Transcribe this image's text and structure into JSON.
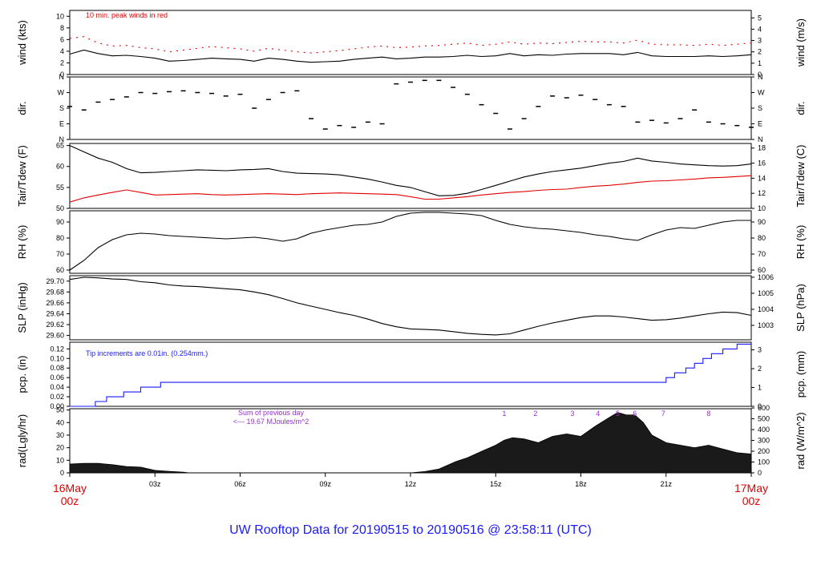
{
  "title": "UW Rooftop Data for 20190515  to  20190516 @ 23:58:11  (UTC)",
  "x_axis": {
    "start_label": [
      "16May",
      "00z"
    ],
    "end_label": [
      "17May",
      "00z"
    ],
    "ticks": [
      "03z",
      "06z",
      "09z",
      "12z",
      "15z",
      "18z",
      "21z"
    ],
    "range_hours": [
      0,
      24
    ],
    "tick_hours": [
      3,
      6,
      9,
      12,
      15,
      18,
      21
    ]
  },
  "colors": {
    "title": "#1a1aff",
    "date_labels": "#e00000",
    "peak": "#e00000",
    "dew": "#e00000",
    "precip": "#1a1aff",
    "annotation": "#9a2fd0",
    "line": "#000000"
  },
  "chart_data": [
    {
      "type": "line",
      "panel": "wind",
      "ylabel_left": "wind (kts)",
      "ylabel_right": "wind (m/s)",
      "left_ticks": [
        "0",
        "2",
        "4",
        "6",
        "8",
        "10"
      ],
      "right_ticks": [
        "0",
        "1",
        "2",
        "3",
        "4",
        "5"
      ],
      "ylim": [
        0,
        11
      ],
      "annotation": "10 min. peak winds in red",
      "series": [
        {
          "name": "wind",
          "x": [
            0,
            0.5,
            1,
            1.5,
            2,
            2.5,
            3,
            3.5,
            4,
            4.5,
            5,
            5.5,
            6,
            6.5,
            7,
            7.5,
            8,
            8.5,
            9,
            9.5,
            10,
            10.5,
            11,
            11.5,
            12,
            12.5,
            13,
            13.5,
            14,
            14.5,
            15,
            15.5,
            16,
            16.5,
            17,
            17.5,
            18,
            18.5,
            19,
            19.5,
            20,
            20.5,
            21,
            21.5,
            22,
            22.5,
            23,
            23.5,
            24
          ],
          "y": [
            3.5,
            4.2,
            3.6,
            3.2,
            3.3,
            3.1,
            2.8,
            2.3,
            2.4,
            2.6,
            2.8,
            2.7,
            2.6,
            2.3,
            2.8,
            2.6,
            2.3,
            2.1,
            2.2,
            2.3,
            2.6,
            2.8,
            3,
            2.7,
            2.8,
            3,
            3,
            3.1,
            3.3,
            3.1,
            3.2,
            3.6,
            3.2,
            3.4,
            3.3,
            3.5,
            3.6,
            3.6,
            3.6,
            3.4,
            3.8,
            3.2,
            3.1,
            3.1,
            3.1,
            3.2,
            3.1,
            3.2,
            3.4
          ]
        },
        {
          "name": "peak",
          "x": [
            0,
            0.5,
            1,
            1.5,
            2,
            2.5,
            3,
            3.5,
            4,
            4.5,
            5,
            5.5,
            6,
            6.5,
            7,
            7.5,
            8,
            8.5,
            9,
            9.5,
            10,
            10.5,
            11,
            11.5,
            12,
            12.5,
            13,
            13.5,
            14,
            14.5,
            15,
            15.5,
            16,
            16.5,
            17,
            17.5,
            18,
            18.5,
            19,
            19.5,
            20,
            20.5,
            21,
            21.5,
            22,
            22.5,
            23,
            23.5,
            24
          ],
          "y": [
            6.2,
            6.5,
            5.4,
            4.9,
            5,
            4.6,
            4.4,
            3.9,
            4.2,
            4.5,
            4.8,
            4.6,
            4.4,
            4,
            4.5,
            4.2,
            3.9,
            3.7,
            3.9,
            4.1,
            4.4,
            4.7,
            4.9,
            4.6,
            4.7,
            4.9,
            5,
            5.2,
            5.4,
            5,
            5.2,
            5.6,
            5.2,
            5.4,
            5.3,
            5.5,
            5.7,
            5.6,
            5.6,
            5.4,
            5.9,
            5.2,
            5.1,
            5.1,
            5,
            5.2,
            5,
            5.2,
            5.4
          ]
        }
      ]
    },
    {
      "type": "scatter",
      "panel": "dir",
      "ylabel_left": "dir.",
      "ylabel_right": "dir.",
      "left_ticks": [
        "N",
        "E",
        "S",
        "W",
        "N"
      ],
      "right_ticks": [
        "N",
        "E",
        "S",
        "W",
        "N"
      ],
      "ylim": [
        0,
        360
      ],
      "series": [
        {
          "name": "dir",
          "x": [
            0,
            0.5,
            1,
            1.5,
            2,
            2.5,
            3,
            3.5,
            4,
            4.5,
            5,
            5.5,
            6,
            6.5,
            7,
            7.5,
            8,
            8.5,
            9,
            9.5,
            10,
            10.5,
            11,
            11.5,
            12,
            12.5,
            13,
            13.5,
            14,
            14.5,
            15,
            15.5,
            16,
            16.5,
            17,
            17.5,
            18,
            18.5,
            19,
            19.5,
            20,
            20.5,
            21,
            21.5,
            22,
            22.5,
            23,
            23.5,
            24
          ],
          "y": [
            190,
            170,
            215,
            230,
            245,
            270,
            265,
            275,
            280,
            270,
            265,
            250,
            260,
            180,
            230,
            270,
            280,
            120,
            60,
            80,
            70,
            100,
            90,
            320,
            330,
            340,
            340,
            300,
            260,
            200,
            150,
            60,
            120,
            190,
            250,
            240,
            255,
            230,
            200,
            190,
            100,
            110,
            95,
            120,
            170,
            100,
            90,
            80,
            70
          ]
        }
      ]
    },
    {
      "type": "line",
      "panel": "temperature",
      "ylabel_left": "Tair/Tdew (F)",
      "ylabel_right": "Tair/Tdew (C)",
      "left_ticks": [
        "50",
        "55",
        "60",
        "65"
      ],
      "right_ticks": [
        "10",
        "12",
        "14",
        "16",
        "18"
      ],
      "ylim": [
        50,
        65.5
      ],
      "series": [
        {
          "name": "Tair",
          "x": [
            0,
            0.5,
            1,
            1.5,
            2,
            2.5,
            3,
            3.5,
            4,
            4.5,
            5,
            5.5,
            6,
            6.5,
            7,
            7.5,
            8,
            8.5,
            9,
            9.5,
            10,
            10.5,
            11,
            11.5,
            12,
            12.5,
            13,
            13.5,
            14,
            14.5,
            15,
            15.5,
            16,
            16.5,
            17,
            17.5,
            18,
            18.5,
            19,
            19.5,
            20,
            20.5,
            21,
            21.5,
            22,
            22.5,
            23,
            23.5,
            24
          ],
          "y": [
            65,
            63.5,
            62,
            61,
            59.5,
            58.5,
            58.6,
            58.8,
            59,
            59.2,
            59.1,
            59,
            59.2,
            59.3,
            59.5,
            58.8,
            58.4,
            58.3,
            58.2,
            58,
            57.5,
            57,
            56.3,
            55.5,
            55,
            54,
            53,
            53.1,
            53.6,
            54.5,
            55.5,
            56.5,
            57.5,
            58.2,
            58.8,
            59.2,
            59.6,
            60.2,
            60.8,
            61.2,
            62,
            61.3,
            61,
            60.6,
            60.4,
            60.2,
            60.1,
            60.2,
            60.6
          ]
        },
        {
          "name": "Tdew",
          "x": [
            0,
            0.5,
            1,
            1.5,
            2,
            2.5,
            3,
            3.5,
            4,
            4.5,
            5,
            5.5,
            6,
            6.5,
            7,
            7.5,
            8,
            8.5,
            9,
            9.5,
            10,
            10.5,
            11,
            11.5,
            12,
            12.5,
            13,
            13.5,
            14,
            14.5,
            15,
            15.5,
            16,
            16.5,
            17,
            17.5,
            18,
            18.5,
            19,
            19.5,
            20,
            20.5,
            21,
            21.5,
            22,
            22.5,
            23,
            23.5,
            24
          ],
          "y": [
            51.5,
            52.5,
            53.2,
            53.8,
            54.4,
            53.8,
            53.2,
            53.3,
            53.4,
            53.5,
            53.3,
            53.2,
            53.3,
            53.4,
            53.5,
            53.4,
            53.3,
            53.5,
            53.6,
            53.7,
            53.6,
            53.5,
            53.4,
            53.3,
            52.8,
            52.2,
            52.2,
            52.5,
            52.8,
            53.2,
            53.5,
            53.8,
            54,
            54.3,
            54.5,
            54.6,
            55,
            55.3,
            55.5,
            55.8,
            56.2,
            56.5,
            56.6,
            56.8,
            57,
            57.3,
            57.4,
            57.6,
            57.8
          ]
        }
      ]
    },
    {
      "type": "line",
      "panel": "rh",
      "ylabel_left": "RH (%)",
      "ylabel_right": "RH (%)",
      "left_ticks": [
        "60",
        "70",
        "80",
        "90"
      ],
      "right_ticks": [
        "60",
        "70",
        "80",
        "90"
      ],
      "ylim": [
        58,
        97
      ],
      "series": [
        {
          "name": "RH",
          "x": [
            0,
            0.5,
            1,
            1.5,
            2,
            2.5,
            3,
            3.5,
            4,
            4.5,
            5,
            5.5,
            6,
            6.5,
            7,
            7.5,
            8,
            8.5,
            9,
            9.5,
            10,
            10.5,
            11,
            11.5,
            12,
            12.5,
            13,
            13.5,
            14,
            14.5,
            15,
            15.5,
            16,
            16.5,
            17,
            17.5,
            18,
            18.5,
            19,
            19.5,
            20,
            20.5,
            21,
            21.5,
            22,
            22.5,
            23,
            23.5,
            24
          ],
          "y": [
            60,
            66,
            74,
            79,
            82,
            83,
            82.5,
            81.5,
            81,
            80.5,
            80,
            79.5,
            80,
            80.5,
            79.5,
            78,
            79.5,
            83,
            85,
            86.5,
            88,
            88.5,
            90,
            93.5,
            95.5,
            96,
            96,
            95.5,
            95,
            94,
            91,
            88.5,
            87,
            86,
            85.5,
            84.5,
            83.5,
            82,
            81,
            79.5,
            78.5,
            82,
            85,
            86.5,
            86,
            88,
            90,
            91,
            91
          ]
        }
      ]
    },
    {
      "type": "line",
      "panel": "slp",
      "ylabel_left": "SLP (inHg)",
      "ylabel_right": "SLP (hPa)",
      "left_ticks": [
        "29.60",
        "29.62",
        "29.64",
        "29.66",
        "29.68",
        "29.70"
      ],
      "right_ticks": [
        "1003",
        "1004",
        "1005",
        "1006"
      ],
      "ylim": [
        29.592,
        29.71
      ],
      "series": [
        {
          "name": "SLP",
          "x": [
            0,
            0.5,
            1,
            1.5,
            2,
            2.5,
            3,
            3.5,
            4,
            4.5,
            5,
            5.5,
            6,
            6.5,
            7,
            7.5,
            8,
            8.5,
            9,
            9.5,
            10,
            10.5,
            11,
            11.5,
            12,
            12.5,
            13,
            13.5,
            14,
            14.5,
            15,
            15.5,
            16,
            16.5,
            17,
            17.5,
            18,
            18.5,
            19,
            19.5,
            20,
            20.5,
            21,
            21.5,
            22,
            22.5,
            23,
            23.5,
            24
          ],
          "y": [
            29.703,
            29.707,
            29.706,
            29.704,
            29.703,
            29.699,
            29.697,
            29.693,
            29.691,
            29.69,
            29.688,
            29.686,
            29.684,
            29.68,
            29.675,
            29.668,
            29.66,
            29.654,
            29.648,
            29.642,
            29.637,
            29.63,
            29.622,
            29.616,
            29.612,
            29.611,
            29.61,
            29.607,
            29.604,
            29.602,
            29.601,
            29.603,
            29.61,
            29.617,
            29.623,
            29.628,
            29.633,
            29.636,
            29.636,
            29.634,
            29.631,
            29.628,
            29.629,
            29.632,
            29.636,
            29.64,
            29.643,
            29.642,
            29.637
          ]
        }
      ]
    },
    {
      "type": "line",
      "panel": "precip",
      "ylabel_left": "pcp. (in)",
      "ylabel_right": "pcp. (mm)",
      "left_ticks": [
        "0.00",
        "0.02",
        "0.04",
        "0.06",
        "0.08",
        "0.10",
        "0.12"
      ],
      "right_ticks": [
        "0",
        "1",
        "2",
        "3"
      ],
      "ylim": [
        0,
        0.134
      ],
      "annotation": "Tip increments are 0.01in. (0.254mm.)",
      "series": [
        {
          "name": "pcp",
          "x": [
            0,
            0.9,
            1.3,
            1.9,
            2.5,
            3.2,
            21,
            21.3,
            21.7,
            22,
            22.3,
            22.6,
            23,
            23.5,
            24
          ],
          "y": [
            0,
            0.01,
            0.02,
            0.03,
            0.04,
            0.05,
            0.06,
            0.07,
            0.08,
            0.09,
            0.1,
            0.11,
            0.12,
            0.13,
            0.13
          ]
        }
      ]
    },
    {
      "type": "area",
      "panel": "radiation",
      "ylabel_left": "rad(Lgly/hr)",
      "ylabel_right": "rad (W/m^2)",
      "left_ticks": [
        "0",
        "10",
        "20",
        "30",
        "40",
        "50"
      ],
      "right_ticks": [
        "0",
        "100",
        "200",
        "300",
        "400",
        "500",
        "600"
      ],
      "ylim": [
        0,
        51
      ],
      "annotation": [
        "Sum of previous day",
        "<--- 19.67 MJoules/m^2"
      ],
      "hour_markers": {
        "labels": [
          "1",
          "2",
          "3",
          "4",
          "5",
          "6",
          "7",
          "8"
        ],
        "x": [
          15.3,
          16.4,
          17.7,
          18.6,
          19.3,
          19.9,
          20.9,
          22.5
        ]
      },
      "series": [
        {
          "name": "rad",
          "x": [
            0,
            0.5,
            1,
            1.5,
            2,
            2.5,
            3,
            3.5,
            4,
            4.2,
            12,
            12.5,
            13,
            13.3,
            13.6,
            14,
            14.5,
            15,
            15.3,
            15.6,
            16,
            16.5,
            17,
            17.5,
            18,
            18.5,
            19,
            19.3,
            19.6,
            19.9,
            20.2,
            20.5,
            21,
            21.5,
            22,
            22.5,
            23,
            23.5,
            24
          ],
          "y": [
            7,
            7.5,
            7.5,
            6.5,
            5,
            4.5,
            2,
            1.2,
            0.5,
            0,
            0,
            1,
            3,
            6,
            9,
            12,
            17,
            22,
            26,
            28,
            27,
            24,
            29,
            31,
            29,
            37,
            44,
            48,
            46,
            46,
            40,
            30,
            24,
            22,
            20,
            22,
            19,
            16,
            15
          ]
        }
      ]
    }
  ]
}
